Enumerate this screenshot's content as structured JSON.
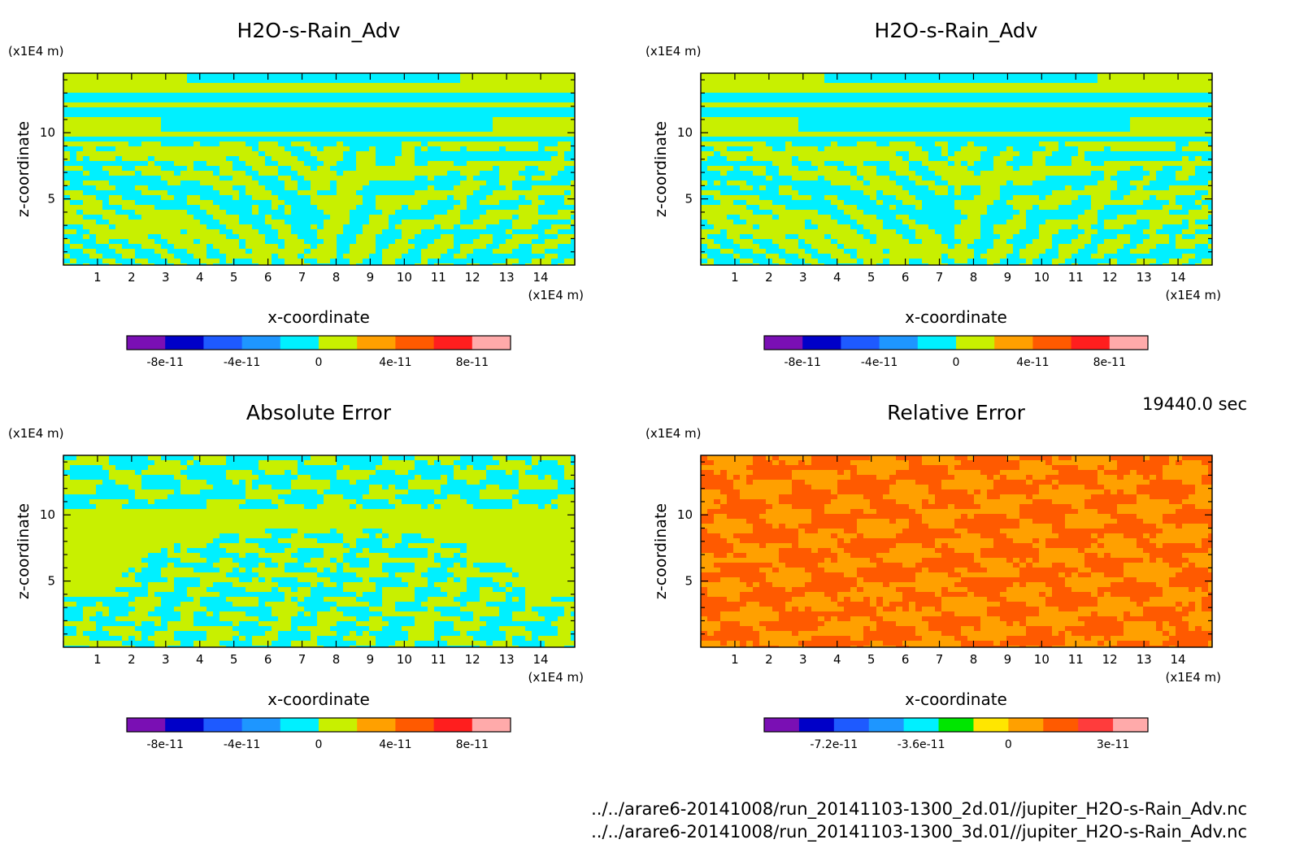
{
  "chart_data": [
    {
      "type": "heatmap",
      "title": "H2O-s-Rain_Adv",
      "xlabel": "x-coordinate",
      "ylabel": "z-coordinate",
      "x_unit": "(x1E4 m)",
      "y_unit": "(x1E4 m)",
      "xlim": [
        0,
        15
      ],
      "ylim": [
        0,
        14.5
      ],
      "x_ticks": [
        "1",
        "2",
        "3",
        "4",
        "5",
        "6",
        "7",
        "8",
        "9",
        "10",
        "11",
        "12",
        "13",
        "14"
      ],
      "y_ticks": [
        "5",
        "10"
      ],
      "colorbar": {
        "colors": [
          "#7a0fb4",
          "#0000c8",
          "#1e5aff",
          "#1e96ff",
          "#00f0ff",
          "#c8f000",
          "#ffa000",
          "#ff5a00",
          "#ff1e1e",
          "#ffaaaa"
        ],
        "tick_labels": [
          "-8e-11",
          "-4e-11",
          "0",
          "4e-11",
          "8e-11"
        ]
      },
      "pattern": "main",
      "palette": [
        "#00f0ff",
        "#c8f000"
      ]
    },
    {
      "type": "heatmap",
      "title": "H2O-s-Rain_Adv",
      "xlabel": "x-coordinate",
      "ylabel": "z-coordinate",
      "x_unit": "(x1E4 m)",
      "y_unit": "(x1E4 m)",
      "xlim": [
        0,
        15
      ],
      "ylim": [
        0,
        14.5
      ],
      "x_ticks": [
        "1",
        "2",
        "3",
        "4",
        "5",
        "6",
        "7",
        "8",
        "9",
        "10",
        "11",
        "12",
        "13",
        "14"
      ],
      "y_ticks": [
        "5",
        "10"
      ],
      "colorbar": {
        "colors": [
          "#7a0fb4",
          "#0000c8",
          "#1e5aff",
          "#1e96ff",
          "#00f0ff",
          "#c8f000",
          "#ffa000",
          "#ff5a00",
          "#ff1e1e",
          "#ffaaaa"
        ],
        "tick_labels": [
          "-8e-11",
          "-4e-11",
          "0",
          "4e-11",
          "8e-11"
        ]
      },
      "pattern": "main",
      "palette": [
        "#00f0ff",
        "#c8f000"
      ]
    },
    {
      "type": "heatmap",
      "title": "Absolute Error",
      "xlabel": "x-coordinate",
      "ylabel": "z-coordinate",
      "x_unit": "(x1E4 m)",
      "y_unit": "(x1E4 m)",
      "xlim": [
        0,
        15
      ],
      "ylim": [
        0,
        14.5
      ],
      "x_ticks": [
        "1",
        "2",
        "3",
        "4",
        "5",
        "6",
        "7",
        "8",
        "9",
        "10",
        "11",
        "12",
        "13",
        "14"
      ],
      "y_ticks": [
        "5",
        "10"
      ],
      "colorbar": {
        "colors": [
          "#7a0fb4",
          "#0000c8",
          "#1e5aff",
          "#1e96ff",
          "#00f0ff",
          "#c8f000",
          "#ffa000",
          "#ff5a00",
          "#ff1e1e",
          "#ffaaaa"
        ],
        "tick_labels": [
          "-8e-11",
          "-4e-11",
          "0",
          "4e-11",
          "8e-11"
        ]
      },
      "pattern": "abs",
      "palette": [
        "#00f0ff",
        "#c8f000"
      ]
    },
    {
      "type": "heatmap",
      "title": "Relative Error",
      "xlabel": "x-coordinate",
      "ylabel": "z-coordinate",
      "x_unit": "(x1E4 m)",
      "y_unit": "(x1E4 m)",
      "xlim": [
        0,
        15
      ],
      "ylim": [
        0,
        14.5
      ],
      "x_ticks": [
        "1",
        "2",
        "3",
        "4",
        "5",
        "6",
        "7",
        "8",
        "9",
        "10",
        "11",
        "12",
        "13",
        "14"
      ],
      "y_ticks": [
        "5",
        "10"
      ],
      "colorbar": {
        "colors": [
          "#7a0fb4",
          "#0000c8",
          "#1e5aff",
          "#1e96ff",
          "#00f0ff",
          "#00e600",
          "#ffe600",
          "#ffa000",
          "#ff5a00",
          "#ff3c3c",
          "#ffaaaa"
        ],
        "tick_labels": [
          "-7.2e-11",
          "-3.6e-11",
          "0",
          "3e-11"
        ]
      },
      "pattern": "rel",
      "palette": [
        "#ff5a00",
        "#ffa000"
      ]
    }
  ],
  "time_label": "19440.0 sec",
  "file_paths": [
    "../../arare6-20141008/run_20141103-1300_2d.01//jupiter_H2O-s-Rain_Adv.nc",
    "../../arare6-20141008/run_20141103-1300_3d.01//jupiter_H2O-s-Rain_Adv.nc"
  ]
}
